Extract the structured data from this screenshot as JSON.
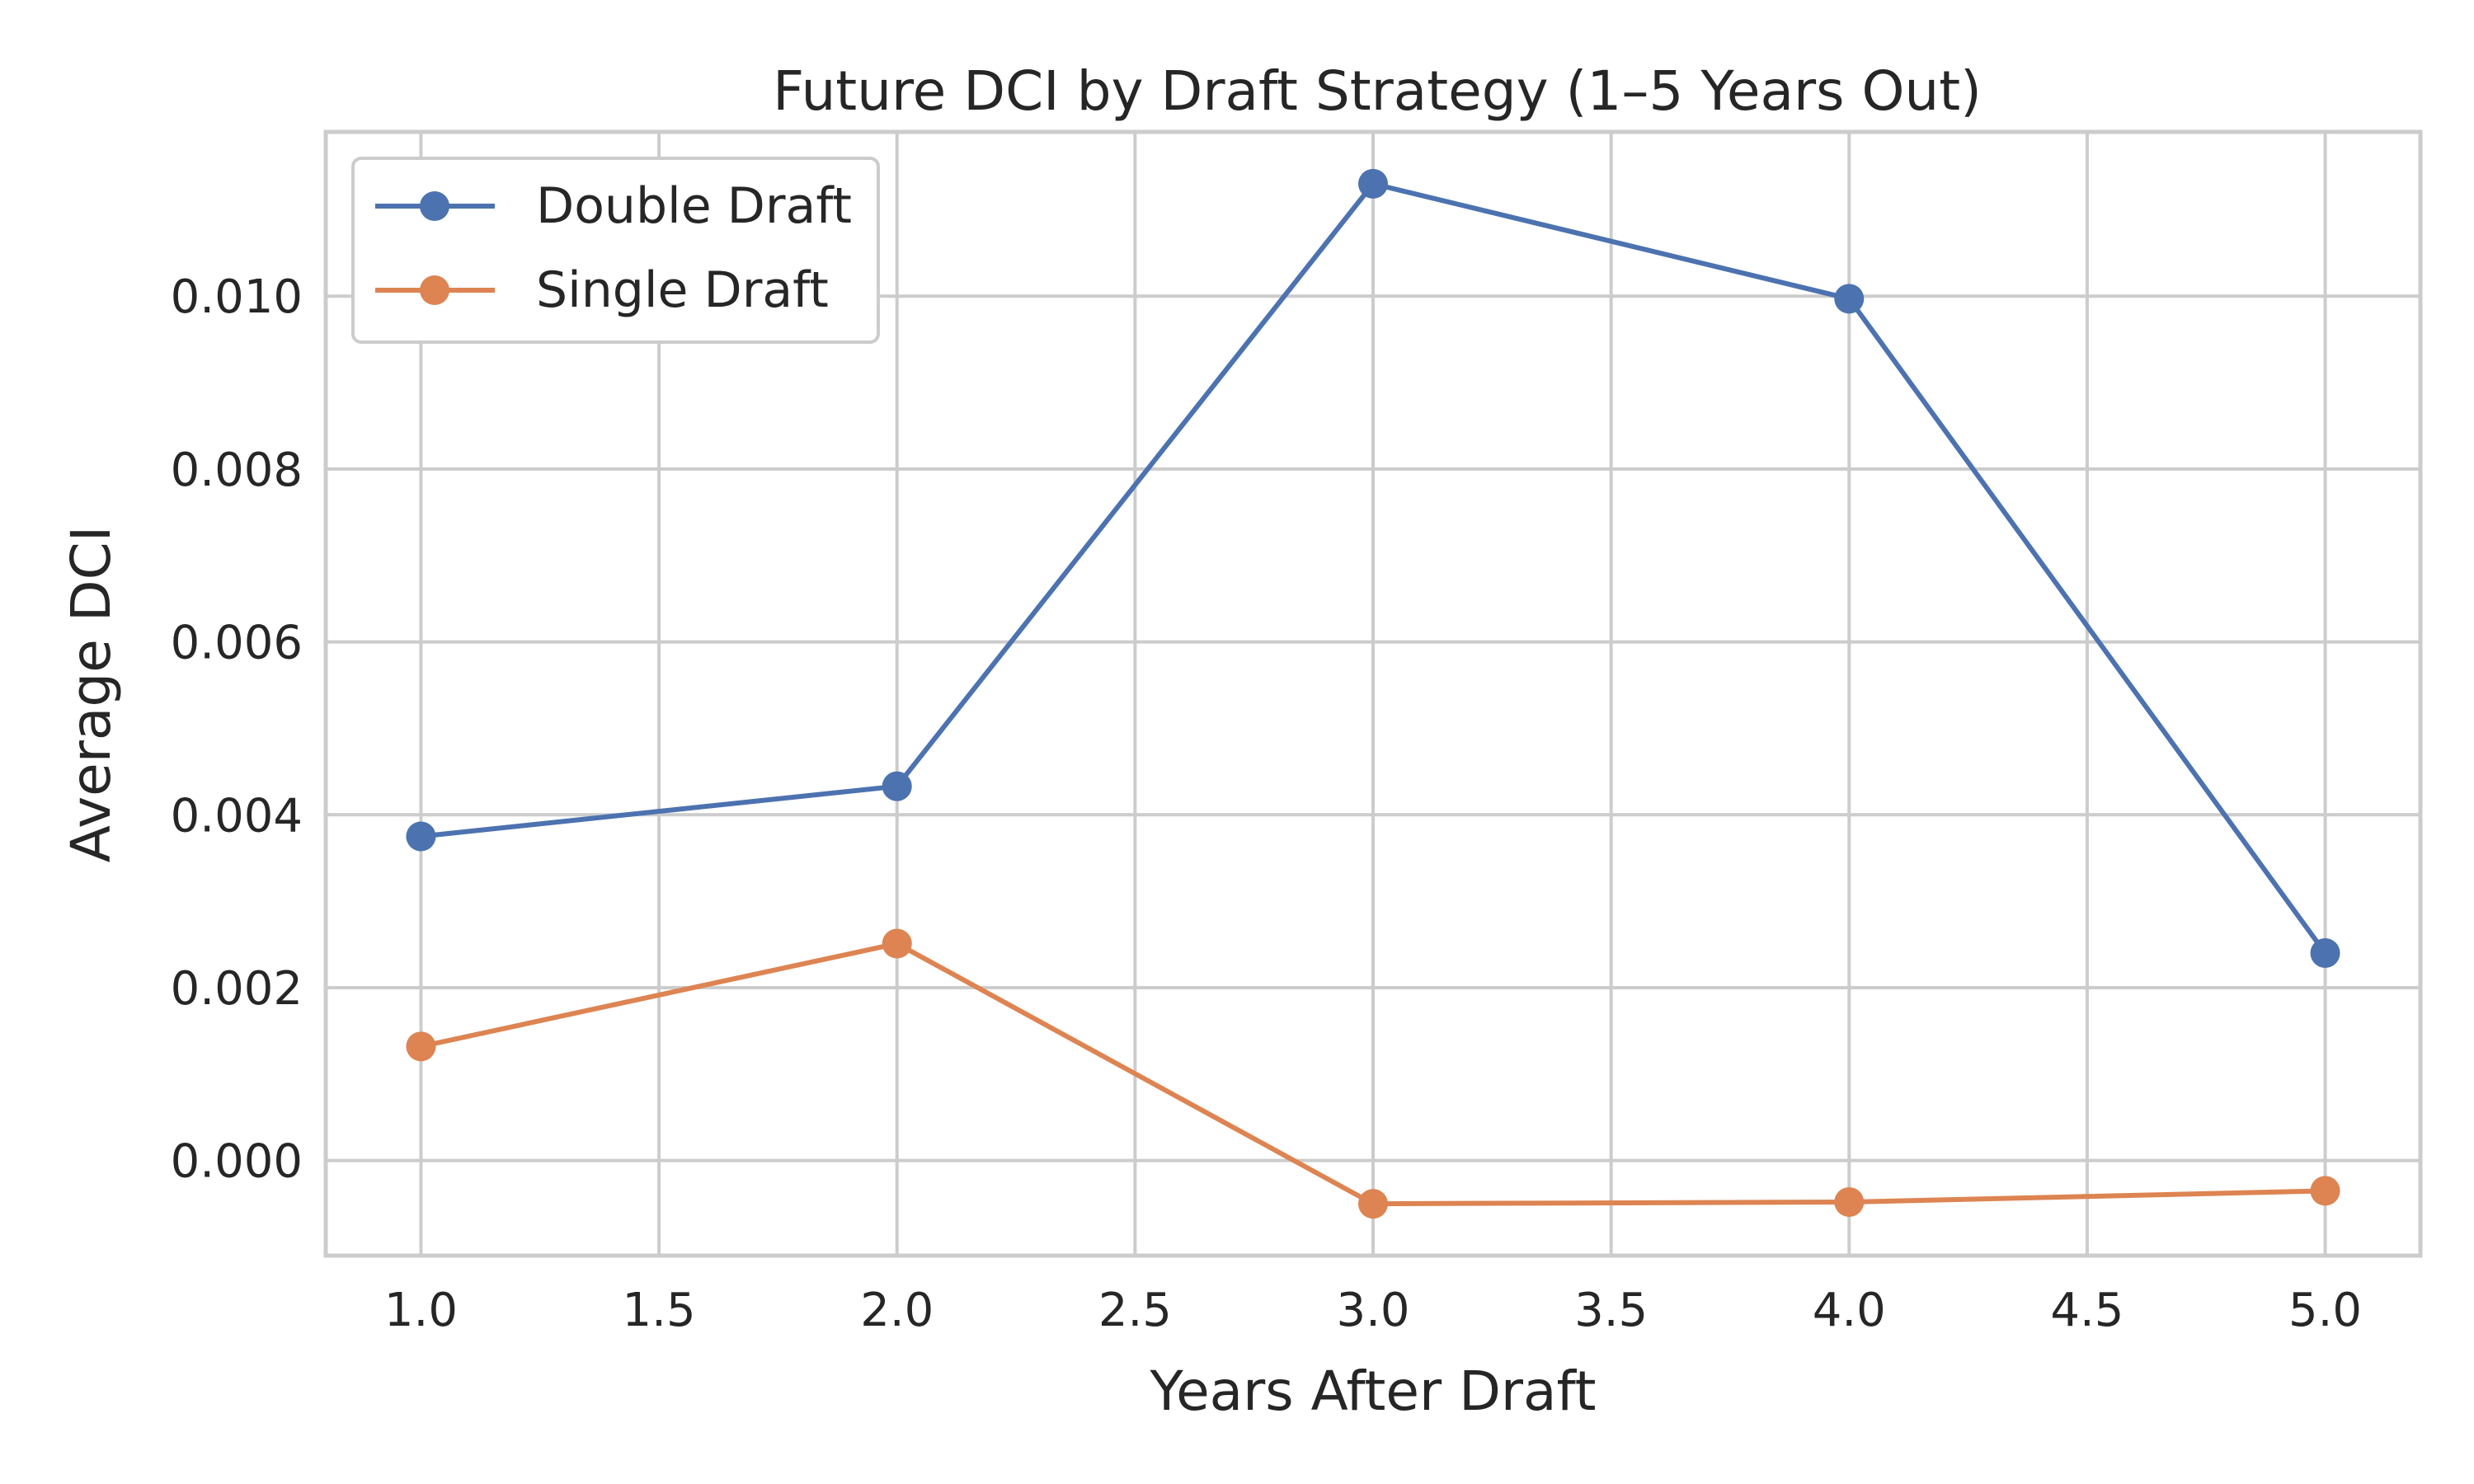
{
  "chart_data": {
    "type": "line",
    "title": "Future DCI by Draft Strategy (1–5 Years Out)",
    "xlabel": "Years After Draft",
    "ylabel": "Average DCI",
    "x": [
      1.0,
      2.0,
      3.0,
      4.0,
      5.0
    ],
    "xlim": [
      0.8,
      5.2
    ],
    "ylim": [
      -0.0011,
      0.0119
    ],
    "xticks": [
      1.0,
      1.5,
      2.0,
      2.5,
      3.0,
      3.5,
      4.0,
      4.5,
      5.0
    ],
    "xtick_labels": [
      "1.0",
      "1.5",
      "2.0",
      "2.5",
      "3.0",
      "3.5",
      "4.0",
      "4.5",
      "5.0"
    ],
    "yticks": [
      0.0,
      0.002,
      0.004,
      0.006,
      0.008,
      0.01
    ],
    "ytick_labels": [
      "0.000",
      "0.002",
      "0.004",
      "0.006",
      "0.008",
      "0.010"
    ],
    "grid": true,
    "legend_position": "top-left",
    "series": [
      {
        "name": "Double Draft",
        "color": "#4c72b0",
        "values": [
          0.00375,
          0.00433,
          0.0113,
          0.00997,
          0.0024
        ]
      },
      {
        "name": "Single Draft",
        "color": "#dd8452",
        "values": [
          0.00132,
          0.00251,
          -0.0005,
          -0.00048,
          -0.00035
        ]
      }
    ]
  }
}
